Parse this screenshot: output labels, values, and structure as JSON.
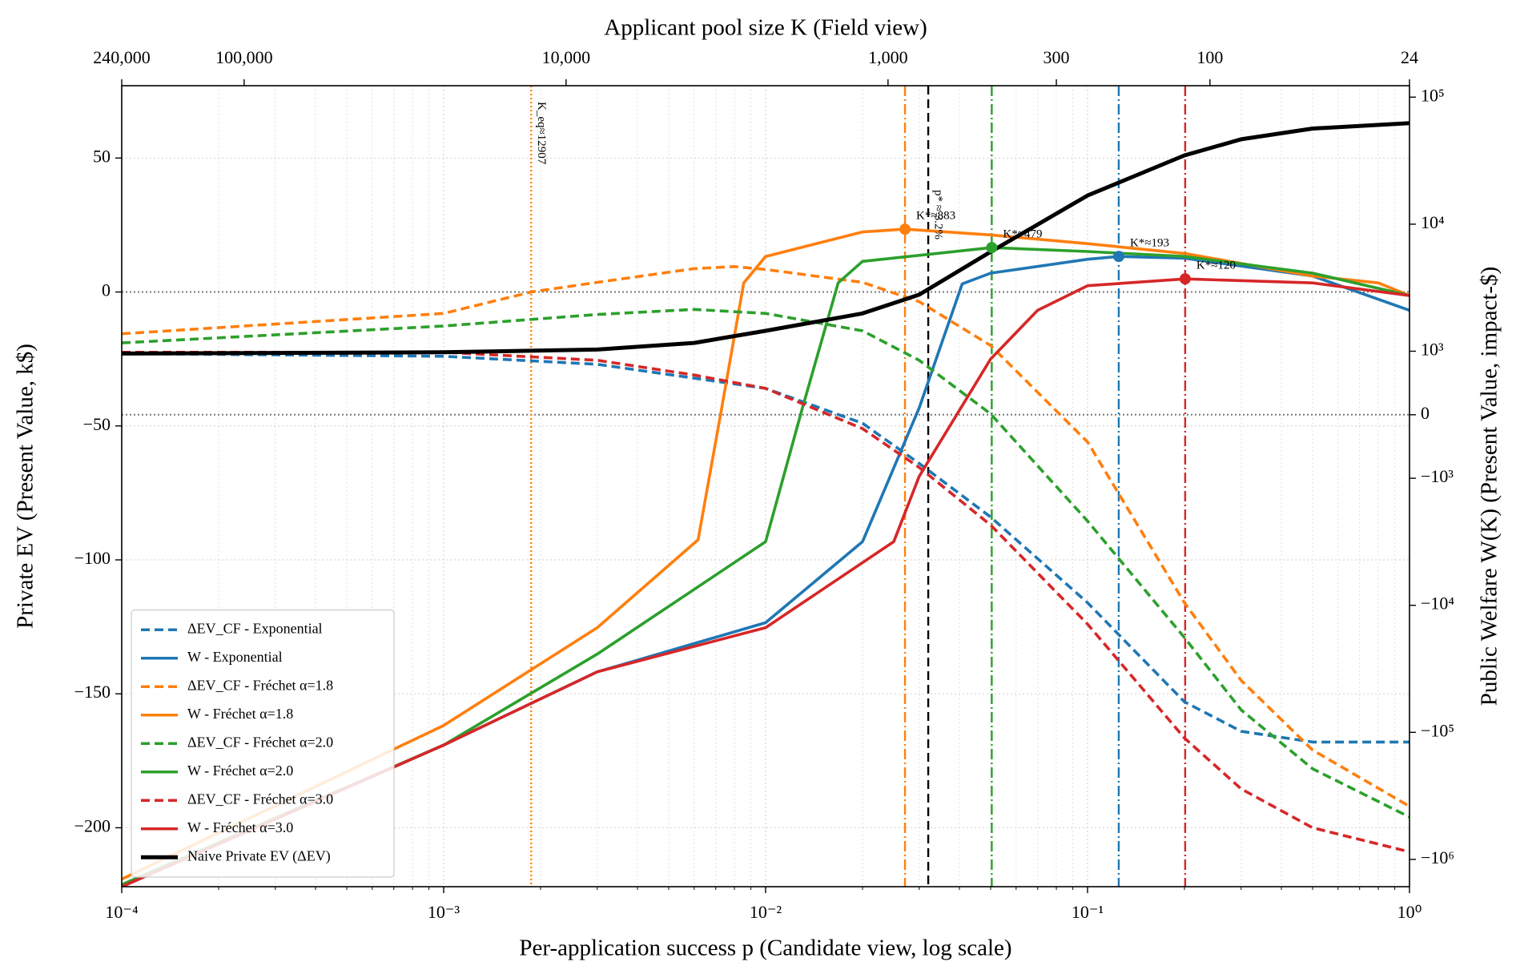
{
  "chart_data": {
    "type": "line",
    "xlabel": "Per-application success p (Candidate view, log scale)",
    "x2label": "Applicant pool size K (Field view)",
    "ylabel": "Private EV (Present Value, k$)",
    "y2label": "Public Welfare W(K) (Present Value, impact-$)",
    "xscale": "log",
    "xlim": [
      0.0001,
      1
    ],
    "xticks": [
      {
        "value": 0.0001,
        "label": "10⁻⁴"
      },
      {
        "value": 0.001,
        "label": "10⁻³"
      },
      {
        "value": 0.01,
        "label": "10⁻²"
      },
      {
        "value": 0.1,
        "label": "10⁻¹"
      },
      {
        "value": 1,
        "label": "10⁰"
      }
    ],
    "xminorticks": [
      0.0002,
      0.0003,
      0.0004,
      0.0005,
      0.0006,
      0.0007,
      0.0008,
      0.0009,
      0.002,
      0.003,
      0.004,
      0.005,
      0.006,
      0.007,
      0.008,
      0.009,
      0.02,
      0.03,
      0.04,
      0.05,
      0.06,
      0.07,
      0.08,
      0.09,
      0.2,
      0.3,
      0.4,
      0.5,
      0.6,
      0.7,
      0.8,
      0.9
    ],
    "x2scale": "log",
    "x2lim": [
      240000,
      24
    ],
    "x2ticks": [
      {
        "value": 240000,
        "label": "240,000"
      },
      {
        "value": 100000,
        "label": "100,000"
      },
      {
        "value": 10000,
        "label": "10,000"
      },
      {
        "value": 1000,
        "label": "1,000"
      },
      300,
      100,
      24
    ],
    "ylim": [
      -222,
      77
    ],
    "yticks": [
      {
        "value": -200,
        "label": "−200"
      },
      {
        "value": -150,
        "label": "−150"
      },
      {
        "value": -100,
        "label": "−100"
      },
      {
        "value": -50,
        "label": "−50"
      },
      0,
      50
    ],
    "y2scale": "symlog",
    "y2linthresh": 1000,
    "y2linscale": 0.5,
    "y2lim": [
      -1640000,
      123000
    ],
    "y2ticks": [
      {
        "value": 100000,
        "label": "10⁵"
      },
      {
        "value": 10000,
        "label": "10⁴"
      },
      {
        "value": 1000,
        "label": "10³"
      },
      0,
      {
        "value": -1000,
        "label": "−10³"
      },
      {
        "value": -10000,
        "label": "−10⁴"
      },
      {
        "value": -100000,
        "label": "−10⁵"
      },
      {
        "value": -1000000,
        "label": "−10⁶"
      }
    ],
    "grid": true,
    "legend": "lower left",
    "hlines": [
      {
        "value": 0,
        "axis": "y"
      },
      {
        "value": 0,
        "axis": "y2"
      }
    ],
    "series": [
      {
        "name": "ΔEV_CF - Exponential",
        "color": "#1f77b4",
        "style": "dashed",
        "axis": "y",
        "x": [
          0.0001,
          0.001,
          0.003,
          0.01,
          0.02,
          0.03,
          0.05,
          0.1,
          0.2,
          0.3,
          0.5,
          1
        ],
        "values": [
          -23,
          -24,
          -27,
          -36,
          -49,
          -64,
          -84,
          -116,
          -153,
          -164,
          -168,
          -168
        ]
      },
      {
        "name": "W - Exponential",
        "color": "#1f77b4",
        "style": "solid",
        "axis": "y2",
        "x": [
          0.0001,
          0.001,
          0.003,
          0.01,
          0.02,
          0.03,
          0.0408,
          0.05,
          0.1,
          0.125,
          0.2,
          0.5,
          1
        ],
        "values": [
          -1640000,
          -126000,
          -33400,
          -13700,
          -3160,
          108,
          3390,
          4120,
          5290,
          5570,
          5400,
          3910,
          2100
        ]
      },
      {
        "name": "ΔEV_CF - Fréchet α=1.8",
        "color": "#ff7f0e",
        "style": "dashed",
        "axis": "y",
        "x": [
          0.0001,
          0.001,
          0.00187,
          0.003,
          0.006,
          0.008,
          0.01,
          0.02,
          0.03,
          0.05,
          0.1,
          0.2,
          0.3,
          0.5,
          1
        ],
        "values": [
          -15.6,
          -8,
          0,
          3.6,
          8.7,
          9.5,
          8.4,
          3.6,
          -3.6,
          -20,
          -56,
          -116,
          -145,
          -171,
          -192
        ]
      },
      {
        "name": "W - Fréchet α=1.8",
        "color": "#ff7f0e",
        "style": "solid",
        "axis": "y2",
        "x": [
          0.0001,
          0.001,
          0.003,
          0.00617,
          0.0073,
          0.00855,
          0.01,
          0.02,
          0.0271,
          0.05,
          0.1,
          0.2,
          0.5,
          0.8,
          1
        ],
        "values": [
          -1430000,
          -88300,
          -15000,
          -3050,
          100,
          3450,
          5570,
          8680,
          9130,
          8230,
          7020,
          5880,
          3910,
          3450,
          2740
        ]
      },
      {
        "name": "ΔEV_CF - Fréchet α=2.0",
        "color": "#2ca02c",
        "style": "dashed",
        "axis": "y",
        "x": [
          0.0001,
          0.001,
          0.003,
          0.006,
          0.01,
          0.02,
          0.03,
          0.05,
          0.1,
          0.2,
          0.3,
          0.5,
          1
        ],
        "values": [
          -19,
          -12.7,
          -8.4,
          -6.5,
          -8,
          -14.5,
          -25.5,
          -45.5,
          -85.5,
          -129,
          -156,
          -178,
          -196
        ]
      },
      {
        "name": "W - Fréchet α=2.0",
        "color": "#2ca02c",
        "style": "solid",
        "axis": "y2",
        "x": [
          0.0001,
          0.001,
          0.003,
          0.01,
          0.013,
          0.0168,
          0.02,
          0.0504,
          0.1,
          0.2,
          0.5,
          1
        ],
        "values": [
          -1580000,
          -126000,
          -24200,
          -3160,
          100,
          3450,
          5100,
          6540,
          6090,
          5570,
          4120,
          2740
        ]
      },
      {
        "name": "ΔEV_CF - Fréchet α=3.0",
        "color": "#d62728",
        "style": "dashed",
        "axis": "y",
        "x": [
          0.0001,
          0.001,
          0.003,
          0.006,
          0.01,
          0.02,
          0.03,
          0.05,
          0.1,
          0.2,
          0.3,
          0.5,
          1
        ],
        "values": [
          -22.5,
          -22.5,
          -25.5,
          -31,
          -36,
          -51,
          -65.5,
          -87,
          -124,
          -166.5,
          -185.5,
          -200,
          -209
        ]
      },
      {
        "name": "W - Fréchet α=3.0",
        "color": "#d62728",
        "style": "solid",
        "axis": "y2",
        "x": [
          0.0001,
          0.001,
          0.003,
          0.01,
          0.025,
          0.03,
          0.05,
          0.07,
          0.1,
          0.201,
          0.5,
          1
        ],
        "values": [
          -1640000,
          -126000,
          -33400,
          -15000,
          -3160,
          -970,
          877,
          2100,
          3280,
          3710,
          3450,
          2740
        ]
      },
      {
        "name": "Naive Private EV (ΔEV)",
        "color": "#000000",
        "style": "bold",
        "axis": "y",
        "x": [
          0.0001,
          0.001,
          0.003,
          0.006,
          0.01,
          0.02,
          0.03,
          0.05,
          0.1,
          0.2,
          0.3,
          0.5,
          1
        ],
        "values": [
          -23,
          -22.5,
          -21.5,
          -19,
          -14.5,
          -8,
          -1,
          15,
          36,
          51,
          57,
          61,
          63
        ]
      }
    ],
    "vlines": [
      {
        "x": 0.0271,
        "color": "#ff7f0e",
        "style": "dashdot"
      },
      {
        "x": 0.0504,
        "color": "#2ca02c",
        "style": "dashdot"
      },
      {
        "x": 0.125,
        "color": "#1f77b4",
        "style": "dashdot"
      },
      {
        "x": 0.201,
        "color": "#d62728",
        "style": "dashdot"
      },
      {
        "x": 0.032,
        "color": "#000000",
        "style": "dashed",
        "label": "p* ≈ 3.2%"
      },
      {
        "x": 0.00187,
        "color": "#ff7f0e",
        "style": "dotted",
        "label": "K_eq≈12907"
      }
    ],
    "markers": [
      {
        "x": 0.0271,
        "y": 9130,
        "axis": "y2",
        "color": "#ff7f0e",
        "label": "K*≈883"
      },
      {
        "x": 0.0504,
        "y": 6540,
        "axis": "y2",
        "color": "#2ca02c",
        "label": "K*≈479"
      },
      {
        "x": 0.125,
        "y": 5570,
        "axis": "y2",
        "color": "#1f77b4",
        "label": "K*≈193"
      },
      {
        "x": 0.201,
        "y": 3710,
        "axis": "y2",
        "color": "#d62728",
        "label": "K*≈120"
      }
    ]
  }
}
